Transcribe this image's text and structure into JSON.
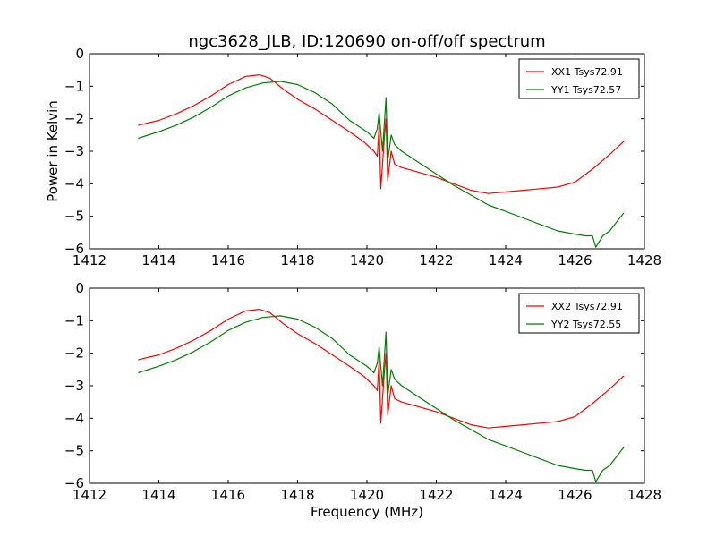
{
  "chart_data": [
    {
      "type": "line",
      "title": "ngc3628_JLB, ID:120690 on-off/off spectrum",
      "xlabel": "",
      "ylabel": "Power in Kelvin",
      "xlim": [
        1412,
        1428
      ],
      "ylim": [
        -6,
        0
      ],
      "xticks": [
        1412,
        1414,
        1416,
        1418,
        1420,
        1422,
        1424,
        1426,
        1428
      ],
      "yticks": [
        0,
        -1,
        -2,
        -3,
        -4,
        -5,
        -6
      ],
      "xtick_labels": [
        "1412",
        "1414",
        "1416",
        "1418",
        "1420",
        "1422",
        "1424",
        "1426",
        "1428"
      ],
      "ytick_labels": [
        "0",
        "−1",
        "−2",
        "−3",
        "−4",
        "−5",
        "−6"
      ],
      "legend_position": "top-right",
      "grid": false,
      "series": [
        {
          "name": "XX1 Tsys72.91",
          "color": "#ff0000",
          "x": [
            1413.4,
            1414.0,
            1414.5,
            1415.0,
            1415.5,
            1416.0,
            1416.5,
            1416.9,
            1417.2,
            1417.6,
            1418.0,
            1418.5,
            1419.0,
            1419.5,
            1419.9,
            1420.2,
            1420.3,
            1420.35,
            1420.4,
            1420.5,
            1420.55,
            1420.6,
            1420.7,
            1420.8,
            1421.0,
            1421.5,
            1422.0,
            1422.5,
            1423.0,
            1423.5,
            1424.0,
            1424.5,
            1425.0,
            1425.5,
            1426.0,
            1426.5,
            1427.0,
            1427.4
          ],
          "y": [
            -2.2,
            -2.05,
            -1.85,
            -1.6,
            -1.3,
            -0.95,
            -0.7,
            -0.65,
            -0.75,
            -1.1,
            -1.4,
            -1.7,
            -2.05,
            -2.4,
            -2.7,
            -3.0,
            -3.15,
            -2.2,
            -4.15,
            -2.6,
            -2.0,
            -3.9,
            -3.0,
            -3.4,
            -3.5,
            -3.65,
            -3.8,
            -4.0,
            -4.2,
            -4.3,
            -4.25,
            -4.2,
            -4.15,
            -4.1,
            -3.95,
            -3.55,
            -3.1,
            -2.7
          ]
        },
        {
          "name": "YY1 Tsys72.57",
          "color": "#008000",
          "x": [
            1413.4,
            1414.0,
            1414.5,
            1415.0,
            1415.5,
            1416.0,
            1416.5,
            1417.0,
            1417.5,
            1418.0,
            1418.5,
            1419.0,
            1419.5,
            1420.0,
            1420.2,
            1420.3,
            1420.35,
            1420.45,
            1420.55,
            1420.6,
            1420.7,
            1420.8,
            1421.0,
            1421.5,
            1422.0,
            1422.5,
            1423.0,
            1423.5,
            1424.0,
            1424.5,
            1425.0,
            1425.5,
            1426.0,
            1426.3,
            1426.5,
            1426.6,
            1426.8,
            1427.0,
            1427.4
          ],
          "y": [
            -2.6,
            -2.4,
            -2.2,
            -1.95,
            -1.65,
            -1.3,
            -1.05,
            -0.9,
            -0.85,
            -0.95,
            -1.2,
            -1.55,
            -2.05,
            -2.4,
            -2.6,
            -2.3,
            -1.8,
            -3.0,
            -1.35,
            -3.3,
            -2.5,
            -2.8,
            -3.0,
            -3.35,
            -3.7,
            -4.05,
            -4.35,
            -4.65,
            -4.85,
            -5.05,
            -5.25,
            -5.45,
            -5.55,
            -5.6,
            -5.6,
            -5.95,
            -5.6,
            -5.45,
            -4.9
          ]
        }
      ]
    },
    {
      "type": "line",
      "title": "",
      "xlabel": "Frequency (MHz)",
      "ylabel": "",
      "xlim": [
        1412,
        1428
      ],
      "ylim": [
        -6,
        0
      ],
      "xticks": [
        1412,
        1414,
        1416,
        1418,
        1420,
        1422,
        1424,
        1426,
        1428
      ],
      "yticks": [
        0,
        -1,
        -2,
        -3,
        -4,
        -5,
        -6
      ],
      "xtick_labels": [
        "1412",
        "1414",
        "1416",
        "1418",
        "1420",
        "1422",
        "1424",
        "1426",
        "1428"
      ],
      "ytick_labels": [
        "0",
        "−1",
        "−2",
        "−3",
        "−4",
        "−5",
        "−6"
      ],
      "legend_position": "top-right",
      "grid": false,
      "series": [
        {
          "name": "XX2 Tsys72.91",
          "color": "#ff0000",
          "x": [
            1413.4,
            1414.0,
            1414.5,
            1415.0,
            1415.5,
            1416.0,
            1416.5,
            1416.9,
            1417.2,
            1417.6,
            1418.0,
            1418.5,
            1419.0,
            1419.5,
            1419.9,
            1420.2,
            1420.3,
            1420.35,
            1420.4,
            1420.5,
            1420.55,
            1420.6,
            1420.7,
            1420.8,
            1421.0,
            1421.5,
            1422.0,
            1422.5,
            1423.0,
            1423.5,
            1424.0,
            1424.5,
            1425.0,
            1425.5,
            1426.0,
            1426.5,
            1427.0,
            1427.4
          ],
          "y": [
            -2.2,
            -2.05,
            -1.85,
            -1.6,
            -1.3,
            -0.95,
            -0.7,
            -0.65,
            -0.75,
            -1.1,
            -1.4,
            -1.7,
            -2.05,
            -2.4,
            -2.7,
            -3.0,
            -3.15,
            -2.2,
            -4.15,
            -2.6,
            -2.0,
            -3.9,
            -3.0,
            -3.4,
            -3.5,
            -3.65,
            -3.8,
            -4.0,
            -4.2,
            -4.3,
            -4.25,
            -4.2,
            -4.15,
            -4.1,
            -3.95,
            -3.55,
            -3.1,
            -2.7
          ]
        },
        {
          "name": "YY2 Tsys72.55",
          "color": "#008000",
          "x": [
            1413.4,
            1414.0,
            1414.5,
            1415.0,
            1415.5,
            1416.0,
            1416.5,
            1417.0,
            1417.5,
            1418.0,
            1418.5,
            1419.0,
            1419.5,
            1420.0,
            1420.2,
            1420.3,
            1420.35,
            1420.45,
            1420.55,
            1420.6,
            1420.7,
            1420.8,
            1421.0,
            1421.5,
            1422.0,
            1422.5,
            1423.0,
            1423.5,
            1424.0,
            1424.5,
            1425.0,
            1425.5,
            1426.0,
            1426.3,
            1426.5,
            1426.6,
            1426.8,
            1427.0,
            1427.4
          ],
          "y": [
            -2.6,
            -2.4,
            -2.2,
            -1.95,
            -1.65,
            -1.3,
            -1.05,
            -0.9,
            -0.85,
            -0.95,
            -1.2,
            -1.55,
            -2.05,
            -2.4,
            -2.6,
            -2.3,
            -1.8,
            -3.0,
            -1.35,
            -3.3,
            -2.5,
            -2.8,
            -3.0,
            -3.35,
            -3.7,
            -4.05,
            -4.35,
            -4.65,
            -4.85,
            -5.05,
            -5.25,
            -5.45,
            -5.55,
            -5.6,
            -5.6,
            -5.95,
            -5.6,
            -5.45,
            -4.9
          ]
        }
      ]
    }
  ]
}
